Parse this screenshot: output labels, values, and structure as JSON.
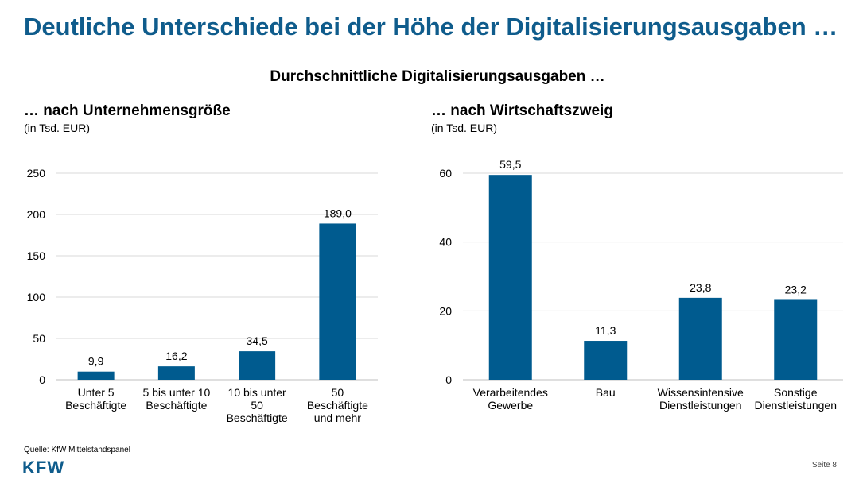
{
  "title": "Deutliche Unterschiede bei der Höhe der Digitalisierungsausgaben …",
  "subtitle": "Durchschnittliche Digitalisierungsausgaben …",
  "colors": {
    "title": "#0f5c8c",
    "bar": "#005b8f",
    "grid": "#d9d9d9"
  },
  "chart_data": [
    {
      "type": "bar",
      "title": "… nach Unternehmensgröße",
      "unit": "(in Tsd. EUR)",
      "categories": [
        [
          "Unter 5",
          "Beschäftigte"
        ],
        [
          "5 bis unter 10",
          "Beschäftigte"
        ],
        [
          "10 bis unter",
          "50",
          "Beschäftigte"
        ],
        [
          "50",
          "Beschäftigte",
          "und mehr"
        ]
      ],
      "values": [
        9.9,
        16.2,
        34.5,
        189.0
      ],
      "labels": [
        "9,9",
        "16,2",
        "34,5",
        "189,0"
      ],
      "ylim": [
        0,
        250
      ],
      "yticks": [
        0,
        50,
        100,
        150,
        200,
        250
      ],
      "grid": true
    },
    {
      "type": "bar",
      "title": "… nach Wirtschaftszweig",
      "unit": "(in Tsd. EUR)",
      "categories": [
        [
          "Verarbeitendes",
          "Gewerbe"
        ],
        [
          "Bau"
        ],
        [
          "Wissensintensive",
          "Dienstleistungen"
        ],
        [
          "Sonstige",
          "Dienstleistungen"
        ]
      ],
      "values": [
        59.5,
        11.3,
        23.8,
        23.2
      ],
      "labels": [
        "59,5",
        "11,3",
        "23,8",
        "23,2"
      ],
      "ylim": [
        0,
        60
      ],
      "yticks": [
        0,
        20,
        40,
        60
      ],
      "grid": true
    }
  ],
  "footer": {
    "source": "Quelle: KfW Mittelstandspanel",
    "logo": "KFW",
    "page": "Seite 8"
  }
}
